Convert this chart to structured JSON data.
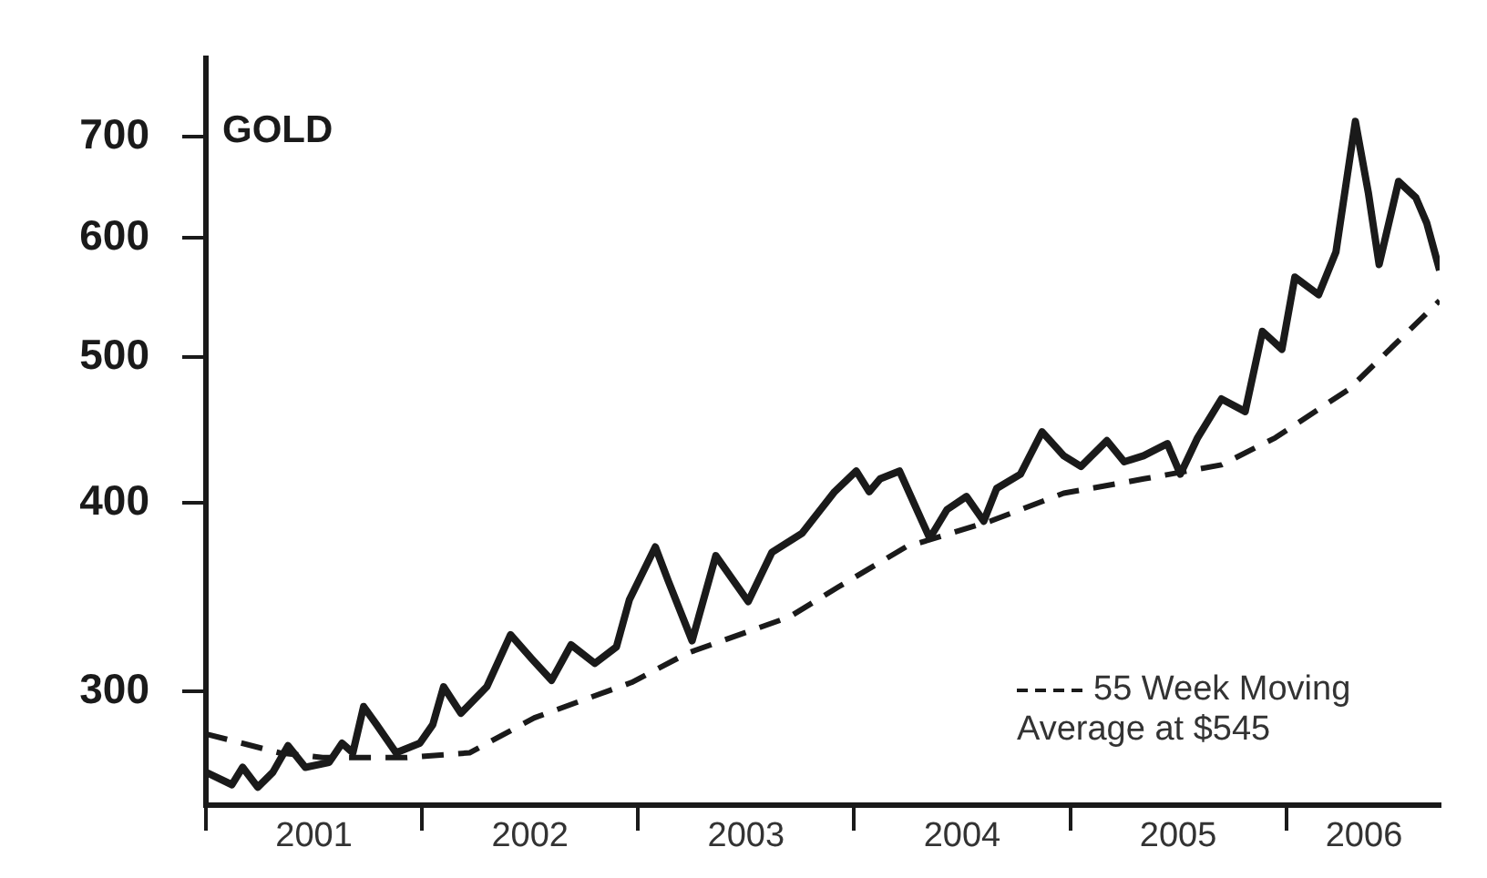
{
  "chart_data": {
    "type": "line",
    "title": "GOLD",
    "log": "y",
    "legend": "bottom right",
    "xlim": [
      2001,
      2006.71
    ],
    "xticks": [
      {
        "value": 2001,
        "label": null
      },
      {
        "value": 2001.5,
        "label": "2001"
      },
      {
        "value": 2002,
        "label": null
      },
      {
        "value": 2002.5,
        "label": "2002"
      },
      {
        "value": 2003,
        "label": null
      },
      {
        "value": 2003.5,
        "label": "2003"
      },
      {
        "value": 2004,
        "label": null
      },
      {
        "value": 2004.5,
        "label": "2004"
      },
      {
        "value": 2005,
        "label": null
      },
      {
        "value": 2005.5,
        "label": "2005"
      },
      {
        "value": 2006,
        "label": null
      },
      {
        "value": 2006.36,
        "label": "2006"
      }
    ],
    "ylim": [
      252,
      790
    ],
    "yticks": [
      300,
      400,
      500,
      600,
      700
    ],
    "series": [
      {
        "color": "#1a1a1a",
        "line_style": "solid",
        "x": [
          2001.0,
          2001.12,
          2001.17,
          2001.24,
          2001.31,
          2001.38,
          2001.46,
          2001.57,
          2001.63,
          2001.68,
          2001.73,
          2001.79,
          2001.88,
          2001.99,
          2002.05,
          2002.1,
          2002.18,
          2002.3,
          2002.41,
          2002.51,
          2002.6,
          2002.69,
          2002.8,
          2002.9,
          2002.96,
          2003.08,
          2003.14,
          2003.25,
          2003.36,
          2003.51,
          2003.62,
          2003.76,
          2003.91,
          2004.01,
          2004.07,
          2004.12,
          2004.21,
          2004.29,
          2004.35,
          2004.43,
          2004.52,
          2004.6,
          2004.66,
          2004.77,
          2004.87,
          2004.97,
          2005.05,
          2005.17,
          2005.25,
          2005.34,
          2005.45,
          2005.51,
          2005.59,
          2005.7,
          2005.81,
          2005.89,
          2005.98,
          2006.04,
          2006.15,
          2006.23,
          2006.32,
          2006.38,
          2006.43,
          2006.52,
          2006.6,
          2006.65,
          2006.71
        ],
        "values": [
          265,
          260,
          267,
          259,
          265,
          276,
          267,
          269,
          277,
          273,
          293,
          285,
          273,
          277,
          285,
          302,
          290,
          302,
          327,
          315,
          305,
          322,
          313,
          321,
          345,
          374,
          355,
          324,
          369,
          344,
          371,
          382,
          407,
          420,
          407,
          415,
          420,
          396,
          379,
          396,
          404,
          389,
          409,
          418,
          446,
          430,
          423,
          440,
          426,
          430,
          438,
          418,
          442,
          469,
          460,
          520,
          506,
          565,
          550,
          587,
          717,
          643,
          576,
          654,
          638,
          614,
          571
        ]
      },
      {
        "name": "55 Week Moving Average at $545",
        "color": "#1a1a1a",
        "line_style": "dashed",
        "x": [
          2001.0,
          2001.34,
          2001.54,
          2001.93,
          2002.22,
          2002.52,
          2002.97,
          2003.23,
          2003.7,
          2003.93,
          2004.24,
          2004.63,
          2004.97,
          2005.34,
          2005.7,
          2005.95,
          2006.29,
          2006.71
        ],
        "values": [
          281,
          273,
          271,
          271,
          273,
          288,
          304,
          318,
          336,
          352,
          374,
          389,
          406,
          415,
          424,
          442,
          476,
          545
        ]
      }
    ]
  }
}
